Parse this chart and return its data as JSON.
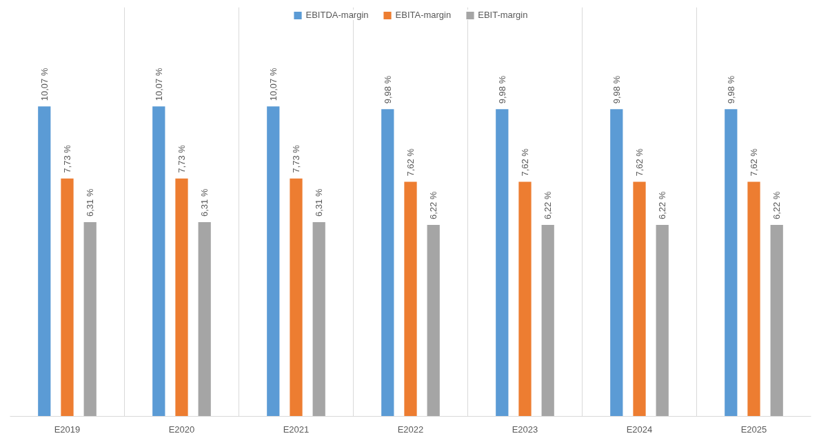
{
  "chart_data": {
    "type": "bar",
    "categories": [
      "E2019",
      "E2020",
      "E2021",
      "E2022",
      "E2023",
      "E2024",
      "E2025"
    ],
    "series": [
      {
        "name": "EBITDA-margin",
        "color": "#5b9bd5",
        "values": [
          10.07,
          10.07,
          10.07,
          9.98,
          9.98,
          9.98,
          9.98
        ],
        "value_labels": [
          "10,07 %",
          "10,07 %",
          "10,07 %",
          "9,98 %",
          "9,98 %",
          "9,98 %",
          "9,98 %"
        ]
      },
      {
        "name": "EBITA-margin",
        "color": "#ed7d31",
        "values": [
          7.73,
          7.73,
          7.73,
          7.62,
          7.62,
          7.62,
          7.62
        ],
        "value_labels": [
          "7,73 %",
          "7,73 %",
          "7,73 %",
          "7,62 %",
          "7,62 %",
          "7,62 %",
          "7,62 %"
        ]
      },
      {
        "name": "EBIT-margin",
        "color": "#a5a5a5",
        "values": [
          6.31,
          6.31,
          6.31,
          6.22,
          6.22,
          6.22,
          6.22
        ],
        "value_labels": [
          "6,31 %",
          "6,31 %",
          "6,31 %",
          "6,22 %",
          "6,22 %",
          "6,22 %",
          "6,22 %"
        ]
      }
    ],
    "grid": "x",
    "legend": "top"
  }
}
